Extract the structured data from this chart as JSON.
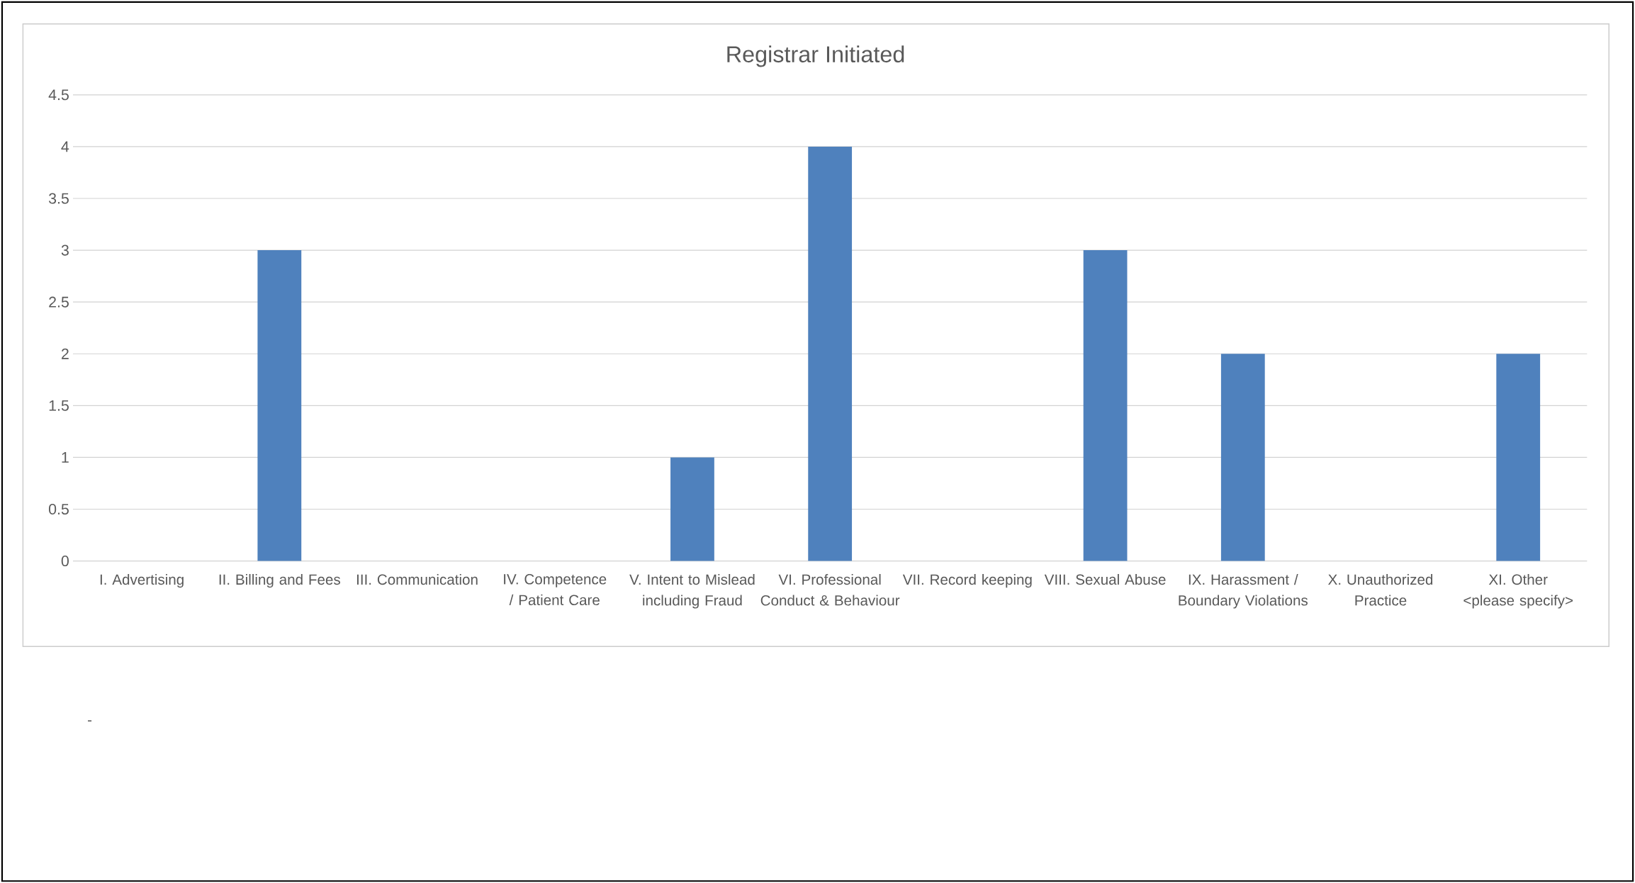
{
  "chart_data": {
    "type": "bar",
    "title": "Registrar Initiated",
    "categories": [
      "I. Advertising",
      "II. Billing and Fees",
      "III. Communication",
      "IV. Competence / Patient Care",
      "V. Intent to Mislead including Fraud",
      "VI. Professional Conduct & Behaviour",
      "VII. Record keeping",
      "VIII. Sexual Abuse",
      "IX. Harassment / Boundary Violations",
      "X. Unauthorized Practice",
      "XI. Other <please specify>"
    ],
    "values": [
      0,
      3,
      0,
      0,
      1,
      4,
      0,
      3,
      2,
      0,
      2
    ],
    "color": "#4f81bd",
    "ylim": [
      0,
      4.5
    ],
    "yticks": [
      0,
      0.5,
      1,
      1.5,
      2,
      2.5,
      3,
      3.5,
      4,
      4.5
    ],
    "grid": "y",
    "annotations": [
      "-"
    ]
  }
}
